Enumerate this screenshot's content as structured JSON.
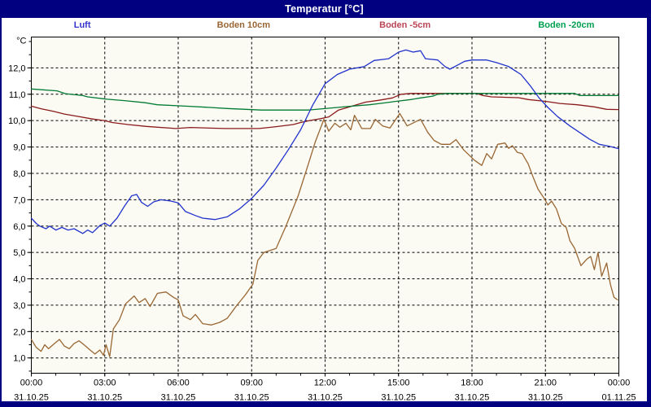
{
  "window": {
    "title": "Temperatur [°C]"
  },
  "colors": {
    "frame": "#000080",
    "titlebar_bg": "#000080",
    "titlebar_text": "#ffffff",
    "plot_bg": "#fbfbf3",
    "grid": "#000000",
    "axis": "#000000",
    "tick_text": "#000000"
  },
  "chart_data": {
    "type": "line",
    "title": "Temperatur [°C]",
    "grid": "dashed",
    "legend_position": "top",
    "y_axis": {
      "unit": "°C",
      "visible_min": 0.42,
      "visible_max": 13.17,
      "tick_values": [
        1,
        2,
        3,
        4,
        5,
        6,
        7,
        8,
        9,
        10,
        11,
        12
      ],
      "tick_labels": [
        "1,0",
        "2,0",
        "3,0",
        "4,0",
        "5,0",
        "6,0",
        "7,0",
        "8,0",
        "9,0",
        "10,0",
        "11,0",
        "12,0"
      ],
      "minor_step": 0.5
    },
    "x_axis": {
      "hours_span": 24,
      "minor_step_hours": 1,
      "ticks": [
        {
          "h": 0,
          "time": "00:00",
          "date": "31.10.25"
        },
        {
          "h": 3,
          "time": "03:00",
          "date": "31.10.25"
        },
        {
          "h": 6,
          "time": "06:00",
          "date": "31.10.25"
        },
        {
          "h": 9,
          "time": "09:00",
          "date": "31.10.25"
        },
        {
          "h": 12,
          "time": "12:00",
          "date": "31.10.25"
        },
        {
          "h": 15,
          "time": "15:00",
          "date": "31.10.25"
        },
        {
          "h": 18,
          "time": "18:00",
          "date": "31.10.25"
        },
        {
          "h": 21,
          "time": "21:00",
          "date": "31.10.25"
        },
        {
          "h": 24,
          "time": "00:00",
          "date": "01.11.25"
        }
      ]
    },
    "series": [
      {
        "name": "Luft",
        "color": "#2233cc",
        "legend_color": "#3333cc",
        "points": [
          [
            0,
            6.3
          ],
          [
            0.2,
            6.1
          ],
          [
            0.35,
            6.0
          ],
          [
            0.6,
            5.9
          ],
          [
            0.75,
            6.0
          ],
          [
            1,
            5.85
          ],
          [
            1.25,
            5.95
          ],
          [
            1.5,
            5.85
          ],
          [
            1.75,
            5.9
          ],
          [
            2.1,
            5.72
          ],
          [
            2.3,
            5.85
          ],
          [
            2.5,
            5.75
          ],
          [
            2.8,
            6.02
          ],
          [
            3,
            6.12
          ],
          [
            3.2,
            6.0
          ],
          [
            3.5,
            6.3
          ],
          [
            3.8,
            6.75
          ],
          [
            4.1,
            7.15
          ],
          [
            4.3,
            7.2
          ],
          [
            4.5,
            6.9
          ],
          [
            4.75,
            6.75
          ],
          [
            5,
            6.92
          ],
          [
            5.3,
            7.0
          ],
          [
            5.7,
            6.95
          ],
          [
            6,
            6.88
          ],
          [
            6.3,
            6.55
          ],
          [
            6.7,
            6.4
          ],
          [
            7,
            6.3
          ],
          [
            7.5,
            6.25
          ],
          [
            8,
            6.35
          ],
          [
            8.5,
            6.65
          ],
          [
            9,
            7.05
          ],
          [
            9.5,
            7.55
          ],
          [
            10,
            8.2
          ],
          [
            10.5,
            8.9
          ],
          [
            11,
            9.65
          ],
          [
            11.5,
            10.6
          ],
          [
            12,
            11.4
          ],
          [
            12.5,
            11.75
          ],
          [
            13,
            11.95
          ],
          [
            13.6,
            12.05
          ],
          [
            14,
            12.28
          ],
          [
            14.6,
            12.35
          ],
          [
            15,
            12.6
          ],
          [
            15.3,
            12.68
          ],
          [
            15.6,
            12.6
          ],
          [
            15.9,
            12.65
          ],
          [
            16.1,
            12.35
          ],
          [
            16.6,
            12.3
          ],
          [
            16.9,
            12.05
          ],
          [
            17.1,
            11.95
          ],
          [
            17.4,
            12.1
          ],
          [
            17.7,
            12.25
          ],
          [
            18,
            12.3
          ],
          [
            18.6,
            12.3
          ],
          [
            19,
            12.2
          ],
          [
            19.5,
            12.05
          ],
          [
            20,
            11.75
          ],
          [
            20.4,
            11.3
          ],
          [
            20.75,
            10.85
          ],
          [
            21.1,
            10.5
          ],
          [
            21.5,
            10.15
          ],
          [
            22,
            9.8
          ],
          [
            22.4,
            9.55
          ],
          [
            22.8,
            9.3
          ],
          [
            23.2,
            9.1
          ],
          [
            23.6,
            9.03
          ],
          [
            24,
            8.93
          ]
        ]
      },
      {
        "name": "Boden 10cm",
        "color": "#996633",
        "legend_color": "#996633",
        "points": [
          [
            0,
            1.7
          ],
          [
            0.2,
            1.4
          ],
          [
            0.4,
            1.25
          ],
          [
            0.55,
            1.5
          ],
          [
            0.7,
            1.35
          ],
          [
            0.95,
            1.55
          ],
          [
            1.15,
            1.7
          ],
          [
            1.35,
            1.45
          ],
          [
            1.55,
            1.35
          ],
          [
            1.75,
            1.55
          ],
          [
            1.95,
            1.65
          ],
          [
            2.15,
            1.5
          ],
          [
            2.4,
            1.3
          ],
          [
            2.6,
            1.15
          ],
          [
            2.8,
            1.3
          ],
          [
            2.95,
            1.1
          ],
          [
            3.05,
            1.5
          ],
          [
            3.2,
            1.05
          ],
          [
            3.35,
            2.1
          ],
          [
            3.6,
            2.45
          ],
          [
            3.85,
            3.05
          ],
          [
            4.2,
            3.35
          ],
          [
            4.4,
            3.1
          ],
          [
            4.65,
            3.25
          ],
          [
            4.85,
            2.95
          ],
          [
            5.15,
            3.45
          ],
          [
            5.5,
            3.5
          ],
          [
            5.8,
            3.3
          ],
          [
            6,
            3.2
          ],
          [
            6.2,
            2.6
          ],
          [
            6.5,
            2.45
          ],
          [
            6.7,
            2.65
          ],
          [
            7,
            2.3
          ],
          [
            7.35,
            2.25
          ],
          [
            7.7,
            2.35
          ],
          [
            8,
            2.5
          ],
          [
            8.4,
            3.0
          ],
          [
            8.75,
            3.4
          ],
          [
            9.05,
            3.8
          ],
          [
            9.25,
            4.7
          ],
          [
            9.5,
            5.0
          ],
          [
            10,
            5.15
          ],
          [
            10.4,
            6.0
          ],
          [
            10.9,
            7.15
          ],
          [
            11.3,
            8.3
          ],
          [
            11.6,
            9.2
          ],
          [
            11.95,
            10.05
          ],
          [
            12.15,
            9.6
          ],
          [
            12.4,
            9.9
          ],
          [
            12.6,
            9.75
          ],
          [
            12.85,
            9.9
          ],
          [
            13.05,
            9.65
          ],
          [
            13.2,
            10.2
          ],
          [
            13.5,
            9.7
          ],
          [
            13.85,
            9.7
          ],
          [
            14.05,
            10.05
          ],
          [
            14.35,
            9.8
          ],
          [
            14.65,
            9.72
          ],
          [
            15.05,
            10.27
          ],
          [
            15.35,
            9.8
          ],
          [
            15.9,
            10.05
          ],
          [
            16.2,
            9.55
          ],
          [
            16.45,
            9.25
          ],
          [
            16.75,
            9.1
          ],
          [
            17.1,
            9.1
          ],
          [
            17.35,
            9.28
          ],
          [
            17.65,
            8.9
          ],
          [
            18.1,
            8.5
          ],
          [
            18.4,
            8.3
          ],
          [
            18.6,
            8.75
          ],
          [
            18.8,
            8.55
          ],
          [
            19.05,
            9.1
          ],
          [
            19.35,
            9.15
          ],
          [
            19.5,
            8.95
          ],
          [
            19.65,
            9.05
          ],
          [
            19.85,
            8.8
          ],
          [
            20.05,
            8.75
          ],
          [
            20.3,
            8.35
          ],
          [
            20.5,
            7.85
          ],
          [
            20.7,
            7.4
          ],
          [
            20.95,
            7.05
          ],
          [
            21.1,
            6.8
          ],
          [
            21.25,
            6.95
          ],
          [
            21.45,
            6.65
          ],
          [
            21.65,
            6.1
          ],
          [
            21.85,
            5.95
          ],
          [
            22,
            5.45
          ],
          [
            22.2,
            5.15
          ],
          [
            22.45,
            4.5
          ],
          [
            22.7,
            4.75
          ],
          [
            22.85,
            4.85
          ],
          [
            23,
            4.35
          ],
          [
            23.15,
            5.0
          ],
          [
            23.3,
            4.1
          ],
          [
            23.5,
            4.6
          ],
          [
            23.65,
            3.8
          ],
          [
            23.8,
            3.3
          ],
          [
            23.95,
            3.2
          ]
        ]
      },
      {
        "name": "Boden -5cm",
        "color": "#8b1a1a",
        "legend_color": "#bb4455",
        "points": [
          [
            0,
            10.55
          ],
          [
            0.4,
            10.45
          ],
          [
            0.9,
            10.35
          ],
          [
            1.35,
            10.25
          ],
          [
            1.9,
            10.16
          ],
          [
            2.5,
            10.06
          ],
          [
            3,
            10.0
          ],
          [
            3.3,
            9.93
          ],
          [
            3.95,
            9.85
          ],
          [
            4.7,
            9.78
          ],
          [
            5.9,
            9.7
          ],
          [
            6.5,
            9.74
          ],
          [
            7.9,
            9.7
          ],
          [
            9.3,
            9.7
          ],
          [
            10,
            9.77
          ],
          [
            10.7,
            9.85
          ],
          [
            11,
            9.93
          ],
          [
            11.35,
            10.0
          ],
          [
            11.8,
            10.07
          ],
          [
            12.15,
            10.14
          ],
          [
            12.55,
            10.4
          ],
          [
            13.1,
            10.55
          ],
          [
            13.65,
            10.7
          ],
          [
            14.2,
            10.77
          ],
          [
            14.75,
            10.86
          ],
          [
            15.1,
            11.0
          ],
          [
            15.5,
            11.03
          ],
          [
            18.2,
            11.03
          ],
          [
            18.45,
            10.95
          ],
          [
            18.8,
            10.9
          ],
          [
            19.9,
            10.87
          ],
          [
            20.3,
            10.8
          ],
          [
            21,
            10.73
          ],
          [
            21.6,
            10.65
          ],
          [
            22.3,
            10.6
          ],
          [
            23,
            10.52
          ],
          [
            23.5,
            10.43
          ],
          [
            24,
            10.42
          ]
        ]
      },
      {
        "name": "Boden -20cm",
        "color": "#007a33",
        "legend_color": "#00a050",
        "points": [
          [
            0,
            11.2
          ],
          [
            1.05,
            11.13
          ],
          [
            1.4,
            11.02
          ],
          [
            2.1,
            10.95
          ],
          [
            2.3,
            10.9
          ],
          [
            3.1,
            10.81
          ],
          [
            3.8,
            10.76
          ],
          [
            4.65,
            10.68
          ],
          [
            5.15,
            10.6
          ],
          [
            6.3,
            10.55
          ],
          [
            7.3,
            10.5
          ],
          [
            8,
            10.46
          ],
          [
            9.4,
            10.4
          ],
          [
            11.3,
            10.4
          ],
          [
            11.8,
            10.44
          ],
          [
            12.5,
            10.5
          ],
          [
            13.1,
            10.55
          ],
          [
            13.8,
            10.6
          ],
          [
            14.4,
            10.67
          ],
          [
            14.9,
            10.73
          ],
          [
            15.5,
            10.8
          ],
          [
            15.9,
            10.86
          ],
          [
            16.4,
            10.93
          ],
          [
            16.6,
            11.0
          ],
          [
            17,
            11.03
          ],
          [
            22.2,
            11.03
          ],
          [
            22.4,
            10.95
          ],
          [
            24,
            10.95
          ]
        ]
      }
    ]
  }
}
